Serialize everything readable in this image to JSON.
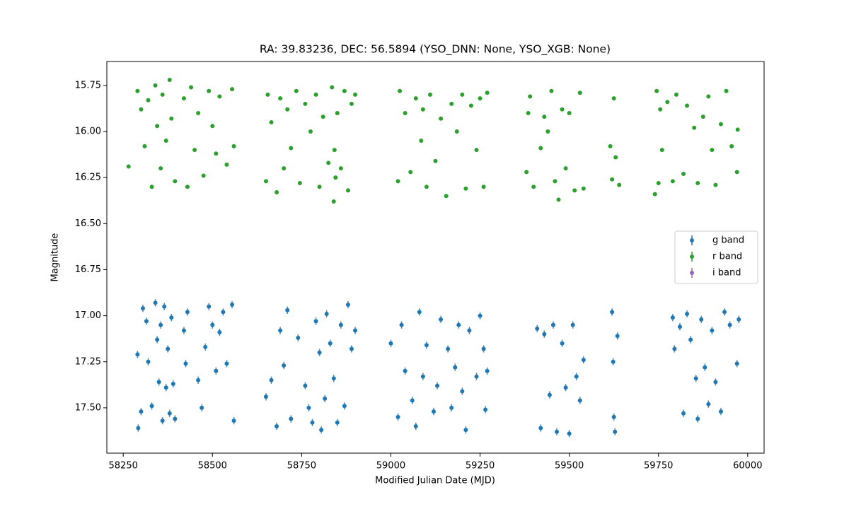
{
  "chart_data": {
    "type": "scatter",
    "title": "RA: 39.83236, DEC: 56.5894 (YSO_DNN: None, YSO_XGB: None)",
    "x_label": "Modified Julian Date (MJD)",
    "y_label": "Magnitude",
    "xlim": [
      58204,
      60046
    ],
    "ylim": [
      17.746,
      15.62
    ],
    "xticks": [
      58250,
      58500,
      58750,
      59000,
      59250,
      59500,
      59750,
      60000
    ],
    "yticks": [
      15.75,
      {
        "value": 16.0,
        "label": "16.00"
      },
      16.25,
      {
        "value": 16.5,
        "label": "16.50"
      },
      16.75,
      {
        "value": 17.0,
        "label": "17.00"
      },
      17.25,
      {
        "value": 17.5,
        "label": "17.50"
      }
    ],
    "grid": false,
    "legend": "center right",
    "series": [
      {
        "name": "g band",
        "color": "#1f77b4",
        "yerr": 0.02,
        "x": [
          58290,
          58292,
          58300,
          58305,
          58315,
          58320,
          58330,
          58340,
          58345,
          58350,
          58355,
          58360,
          58365,
          58370,
          58375,
          58380,
          58385,
          58390,
          58395,
          58420,
          58425,
          58430,
          58460,
          58470,
          58480,
          58490,
          58500,
          58510,
          58520,
          58530,
          58540,
          58555,
          58560,
          58650,
          58665,
          58680,
          58690,
          58700,
          58710,
          58720,
          58740,
          58760,
          58770,
          58780,
          58790,
          58800,
          58805,
          58815,
          58820,
          58830,
          58840,
          58850,
          58860,
          58870,
          58880,
          58890,
          58900,
          59000,
          59020,
          59030,
          59040,
          59060,
          59070,
          59080,
          59090,
          59100,
          59120,
          59130,
          59140,
          59160,
          59170,
          59180,
          59190,
          59200,
          59210,
          59220,
          59240,
          59250,
          59260,
          59265,
          59270,
          59410,
          59420,
          59430,
          59445,
          59455,
          59465,
          59480,
          59490,
          59500,
          59510,
          59520,
          59530,
          59540,
          59620,
          59623,
          59625,
          59628,
          59635,
          59790,
          59795,
          59810,
          59820,
          59830,
          59840,
          59855,
          59860,
          59870,
          59880,
          59890,
          59900,
          59910,
          59925,
          59935,
          59950,
          59970,
          59975
        ],
        "values": [
          17.21,
          17.61,
          17.52,
          16.96,
          17.03,
          17.25,
          17.49,
          16.93,
          17.13,
          17.36,
          17.05,
          17.57,
          16.95,
          17.39,
          17.18,
          17.53,
          17.01,
          17.37,
          17.56,
          17.08,
          17.26,
          16.98,
          17.35,
          17.5,
          17.17,
          16.95,
          17.05,
          17.3,
          17.09,
          16.98,
          17.26,
          16.94,
          17.57,
          17.44,
          17.35,
          17.6,
          17.08,
          17.27,
          16.97,
          17.56,
          17.12,
          17.38,
          17.5,
          17.58,
          17.03,
          17.2,
          17.62,
          17.45,
          16.99,
          17.15,
          17.34,
          17.58,
          17.05,
          17.49,
          16.94,
          17.18,
          17.08,
          17.15,
          17.55,
          17.05,
          17.3,
          17.46,
          17.6,
          16.98,
          17.33,
          17.16,
          17.52,
          17.38,
          17.02,
          17.18,
          17.5,
          17.28,
          17.05,
          17.41,
          17.62,
          17.08,
          17.33,
          17.0,
          17.18,
          17.51,
          17.3,
          17.07,
          17.61,
          17.1,
          17.43,
          17.05,
          17.63,
          17.15,
          17.39,
          17.64,
          17.05,
          17.33,
          17.46,
          17.24,
          16.98,
          17.25,
          17.55,
          17.63,
          17.11,
          17.01,
          17.18,
          17.06,
          17.53,
          16.99,
          17.13,
          17.34,
          17.56,
          17.02,
          17.28,
          17.48,
          17.08,
          17.36,
          17.52,
          16.98,
          17.05,
          17.26,
          17.02
        ]
      },
      {
        "name": "r band",
        "color": "#2ca02c",
        "yerr": 0.01,
        "x": [
          58265,
          58290,
          58300,
          58310,
          58320,
          58330,
          58340,
          58345,
          58355,
          58360,
          58370,
          58380,
          58385,
          58395,
          58420,
          58430,
          58440,
          58450,
          58460,
          58475,
          58490,
          58500,
          58510,
          58520,
          58540,
          58555,
          58560,
          58650,
          58655,
          58665,
          58680,
          58690,
          58700,
          58710,
          58720,
          58735,
          58745,
          58760,
          58775,
          58790,
          58800,
          58810,
          58825,
          58835,
          58840,
          58842,
          58845,
          58850,
          58860,
          58870,
          58880,
          58890,
          58900,
          59020,
          59025,
          59040,
          59055,
          59070,
          59085,
          59090,
          59100,
          59110,
          59125,
          59140,
          59155,
          59170,
          59185,
          59200,
          59210,
          59225,
          59240,
          59250,
          59260,
          59270,
          59380,
          59385,
          59390,
          59400,
          59420,
          59430,
          59440,
          59450,
          59460,
          59470,
          59480,
          59490,
          59500,
          59515,
          59530,
          59540,
          59615,
          59620,
          59625,
          59630,
          59640,
          59740,
          59745,
          59750,
          59755,
          59760,
          59775,
          59790,
          59800,
          59820,
          59830,
          59850,
          59860,
          59875,
          59890,
          59900,
          59910,
          59925,
          59940,
          59955,
          59970,
          59972
        ],
        "values": [
          16.19,
          15.78,
          15.88,
          16.08,
          15.83,
          16.3,
          15.75,
          15.97,
          16.2,
          15.8,
          16.05,
          15.72,
          15.93,
          16.27,
          15.82,
          16.3,
          15.76,
          16.1,
          15.9,
          16.24,
          15.78,
          15.97,
          16.12,
          15.81,
          16.18,
          15.77,
          16.08,
          16.27,
          15.8,
          15.95,
          16.33,
          15.82,
          16.2,
          15.88,
          16.09,
          15.78,
          16.28,
          15.85,
          16.0,
          15.8,
          16.3,
          15.92,
          16.17,
          15.76,
          16.38,
          16.1,
          16.25,
          15.9,
          16.2,
          15.78,
          16.32,
          15.85,
          15.8,
          16.27,
          15.78,
          15.9,
          16.22,
          15.82,
          16.05,
          15.88,
          16.3,
          15.8,
          16.16,
          15.93,
          16.35,
          15.85,
          16.0,
          15.8,
          16.31,
          15.86,
          16.1,
          15.82,
          16.3,
          15.79,
          16.22,
          15.9,
          15.81,
          16.3,
          16.09,
          15.92,
          16.0,
          15.78,
          16.27,
          16.37,
          15.88,
          16.2,
          15.9,
          16.32,
          15.79,
          16.31,
          16.08,
          16.26,
          15.82,
          16.14,
          16.29,
          16.34,
          15.78,
          16.28,
          15.88,
          16.1,
          15.84,
          16.27,
          15.8,
          16.23,
          15.86,
          15.98,
          16.28,
          15.92,
          15.81,
          16.1,
          16.29,
          15.96,
          15.78,
          16.08,
          16.22,
          15.99
        ]
      },
      {
        "name": "i band",
        "color": "#9467bd",
        "yerr": 0.02,
        "x": [],
        "values": []
      }
    ]
  }
}
